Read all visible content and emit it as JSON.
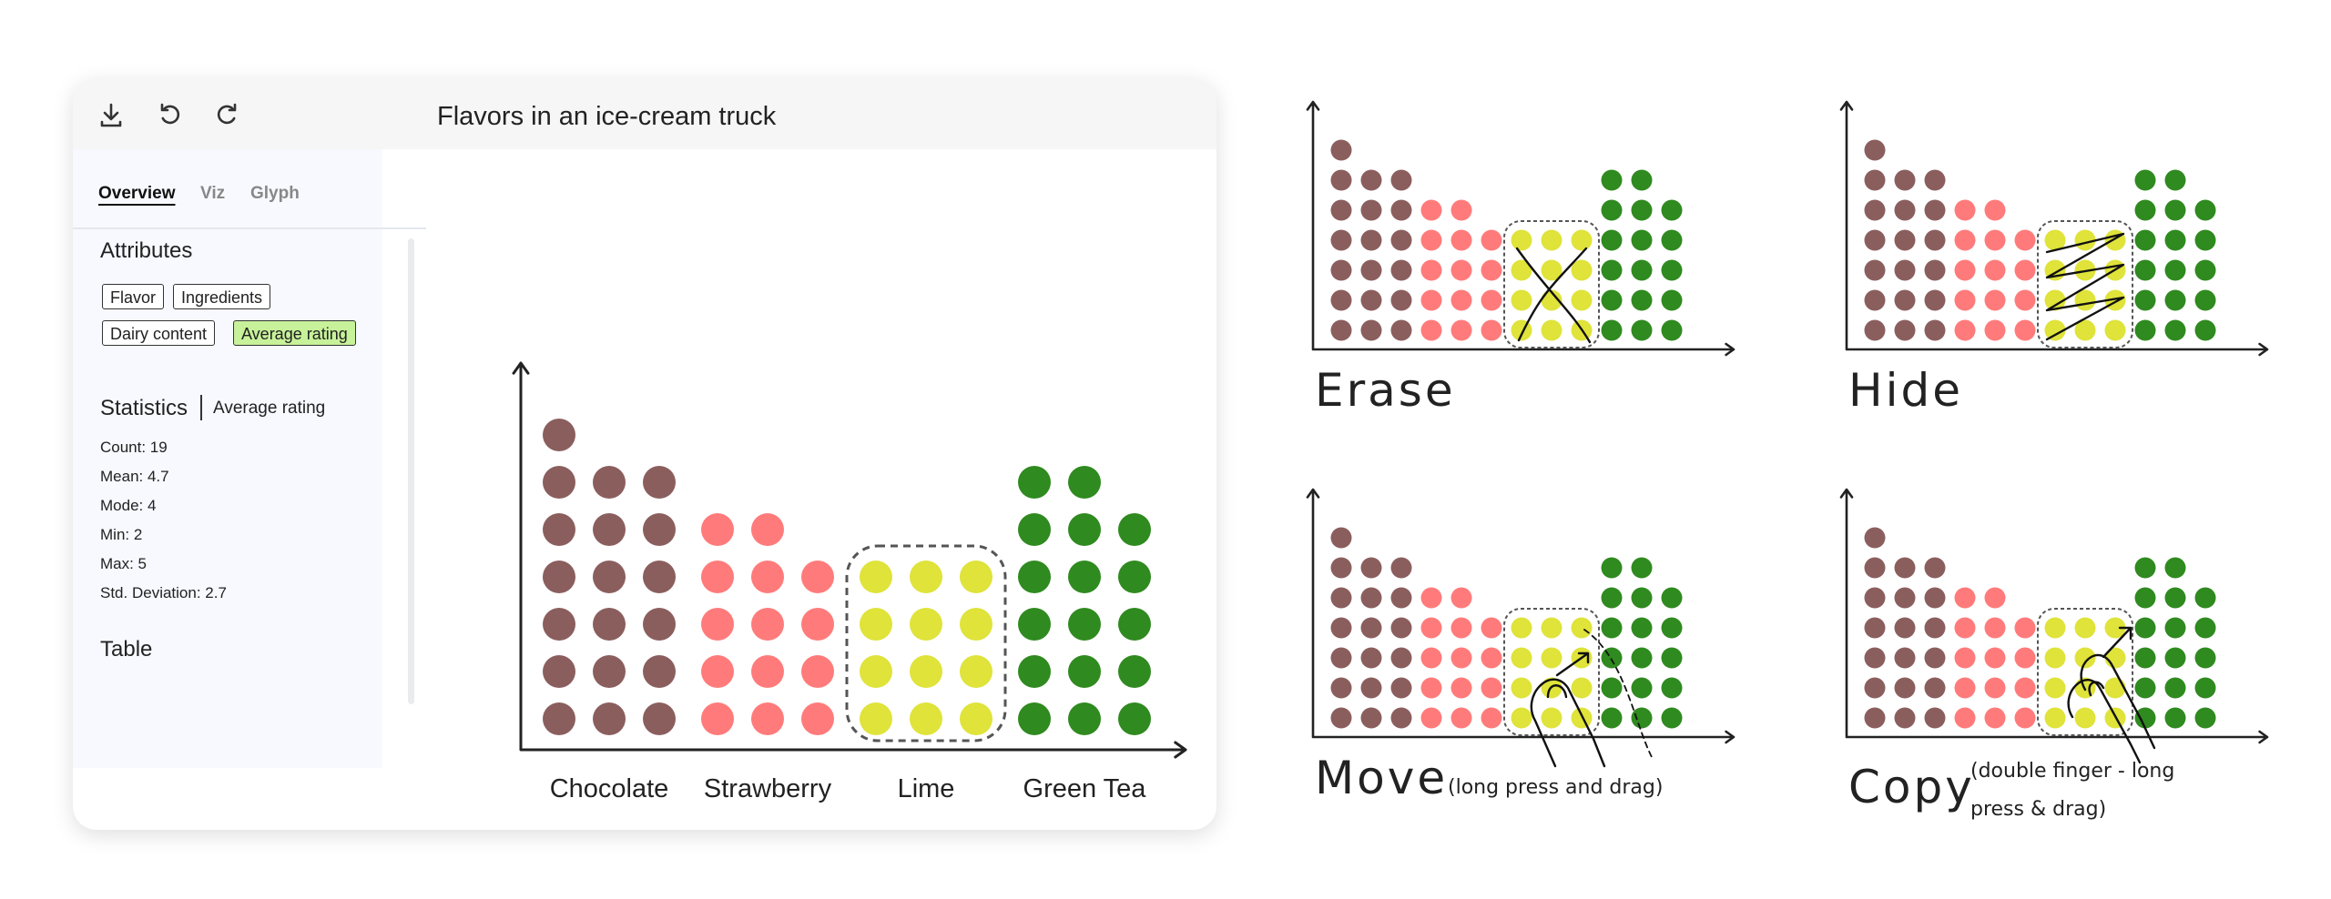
{
  "window": {
    "title": "Flavors in an ice-cream truck",
    "toolbar": {
      "download": "download-icon",
      "undo": "undo-icon",
      "redo": "redo-icon"
    }
  },
  "sidebar": {
    "tabs": [
      {
        "label": "Overview",
        "active": true
      },
      {
        "label": "Viz",
        "active": false
      },
      {
        "label": "Glyph",
        "active": false
      }
    ],
    "attributes": {
      "heading": "Attributes",
      "chips": [
        {
          "label": "Flavor",
          "selected": false
        },
        {
          "label": "Ingredients",
          "selected": false
        },
        {
          "label": "Dairy content",
          "selected": false
        },
        {
          "label": "Average rating",
          "selected": true
        }
      ]
    },
    "statistics": {
      "heading": "Statistics",
      "subject": "Average rating",
      "lines": [
        "Count: 19",
        "Mean: 4.7",
        "Mode: 4",
        "Min: 2",
        "Max: 5",
        "Std. Deviation: 2.7"
      ]
    },
    "table": {
      "heading": "Table"
    }
  },
  "colors": {
    "Chocolate": "#8b5e5e",
    "Strawberry": "#ff7b7b",
    "Lime": "#dfe33a",
    "Green Tea": "#2f8a1f",
    "accent_selected_chip": "#c7f29a"
  },
  "chart_data": {
    "type": "bar",
    "categories": [
      "Chocolate",
      "Strawberry",
      "Lime",
      "Green Tea"
    ],
    "columns": [
      {
        "category": "Chocolate",
        "counts": [
          7,
          6,
          6
        ]
      },
      {
        "category": "Strawberry",
        "counts": [
          5,
          5,
          4
        ]
      },
      {
        "category": "Lime",
        "counts": [
          4,
          4,
          4
        ]
      },
      {
        "category": "Green Tea",
        "counts": [
          6,
          6,
          5
        ]
      }
    ],
    "selected_category": "Lime"
  },
  "examples": [
    {
      "title": "Erase",
      "note": ""
    },
    {
      "title": "Hide",
      "note": ""
    },
    {
      "title": "Move",
      "note": "(long press and drag)"
    },
    {
      "title": "Copy",
      "note_line1": "(double finger - long",
      "note_line2": "press & drag)"
    }
  ]
}
